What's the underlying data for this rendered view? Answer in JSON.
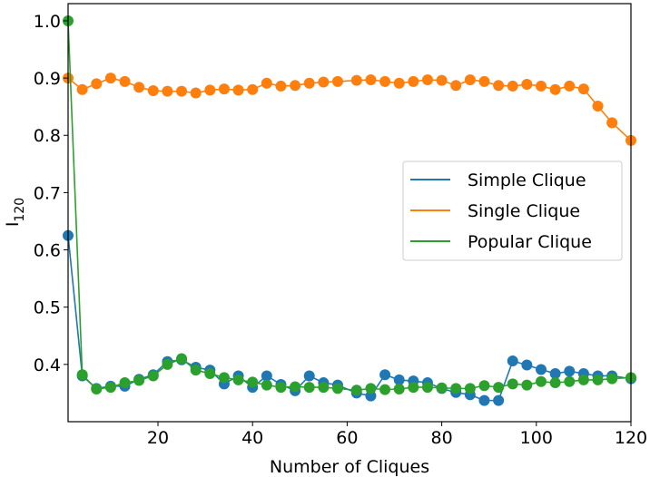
{
  "chart_data": {
    "type": "line",
    "xlabel": "Number of Cliques",
    "ylabel": "I",
    "ylabel_sub": "120",
    "xlim": [
      1,
      120
    ],
    "ylim": [
      0.3,
      1.03
    ],
    "xticks": [
      20,
      40,
      60,
      80,
      100,
      120
    ],
    "yticks": [
      0.4,
      0.5,
      0.6,
      0.7,
      0.8,
      0.9,
      1.0
    ],
    "xtick_labels": [
      "20",
      "40",
      "60",
      "80",
      "100",
      "120"
    ],
    "ytick_labels": [
      "0.4",
      "0.5",
      "0.6",
      "0.7",
      "0.8",
      "0.9",
      "1.0"
    ],
    "grid": false,
    "legend_position": "center-right",
    "x": [
      1,
      4,
      7,
      10,
      13,
      16,
      19,
      22,
      25,
      28,
      31,
      34,
      37,
      40,
      43,
      46,
      49,
      52,
      55,
      58,
      62,
      65,
      68,
      71,
      74,
      77,
      80,
      83,
      86,
      89,
      92,
      95,
      98,
      101,
      104,
      107,
      110,
      113,
      116,
      120
    ],
    "series": [
      {
        "name": "Simple Clique",
        "color": "#1f77b4",
        "values": [
          0.625,
          0.38,
          0.358,
          0.362,
          0.362,
          0.374,
          0.382,
          0.405,
          0.408,
          0.395,
          0.39,
          0.366,
          0.38,
          0.36,
          0.38,
          0.365,
          0.354,
          0.38,
          0.368,
          0.364,
          0.35,
          0.345,
          0.382,
          0.373,
          0.371,
          0.368,
          0.358,
          0.351,
          0.347,
          0.337,
          0.337,
          0.406,
          0.399,
          0.391,
          0.384,
          0.388,
          0.384,
          0.38,
          0.38,
          0.375
        ]
      },
      {
        "name": "Single Clique",
        "color": "#ff7f0e",
        "values": [
          0.9,
          0.88,
          0.89,
          0.9,
          0.894,
          0.884,
          0.878,
          0.877,
          0.877,
          0.874,
          0.879,
          0.881,
          0.879,
          0.88,
          0.891,
          0.886,
          0.887,
          0.891,
          0.893,
          0.894,
          0.896,
          0.897,
          0.894,
          0.891,
          0.894,
          0.897,
          0.896,
          0.887,
          0.897,
          0.894,
          0.887,
          0.886,
          0.889,
          0.886,
          0.88,
          0.886,
          0.881,
          0.851,
          0.822,
          0.791
        ]
      },
      {
        "name": "Popular Clique",
        "color": "#2ca02c",
        "values": [
          1.0,
          0.382,
          0.357,
          0.36,
          0.368,
          0.372,
          0.38,
          0.4,
          0.41,
          0.39,
          0.384,
          0.377,
          0.373,
          0.369,
          0.364,
          0.36,
          0.361,
          0.36,
          0.36,
          0.358,
          0.355,
          0.358,
          0.356,
          0.357,
          0.36,
          0.36,
          0.359,
          0.358,
          0.358,
          0.363,
          0.36,
          0.366,
          0.364,
          0.37,
          0.368,
          0.37,
          0.373,
          0.373,
          0.375,
          0.377
        ]
      }
    ]
  }
}
